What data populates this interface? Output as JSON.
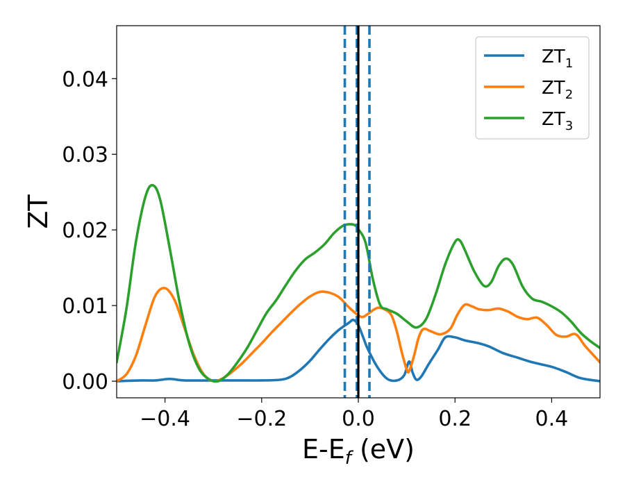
{
  "chart_data": {
    "type": "line",
    "title": "",
    "xlabel": {
      "base": "E-E",
      "sub": "f",
      "suffix": " (eV)"
    },
    "ylabel": "ZT",
    "xlim": [
      -0.5,
      0.5
    ],
    "ylim": [
      -0.0022,
      0.047
    ],
    "xticks": [
      -0.4,
      -0.2,
      0.0,
      0.2,
      0.4
    ],
    "xtick_labels": [
      "−0.4",
      "−0.2",
      "0.0",
      "0.2",
      "0.4"
    ],
    "yticks": [
      0.0,
      0.01,
      0.02,
      0.03,
      0.04
    ],
    "ytick_labels": [
      "0.00",
      "0.01",
      "0.02",
      "0.03",
      "0.04"
    ],
    "grid": false,
    "legend_position": "top-right",
    "series": [
      {
        "name": "ZT1",
        "label_base": "ZT",
        "label_sub": "1",
        "color": "#1f77b4",
        "points": [
          [
            -0.5,
            0.0
          ],
          [
            -0.45,
            0.0001
          ],
          [
            -0.42,
            0.0001
          ],
          [
            -0.39,
            0.0003
          ],
          [
            -0.36,
            0.0001
          ],
          [
            -0.3,
            0.0001
          ],
          [
            -0.25,
            0.0001
          ],
          [
            -0.2,
            0.0001
          ],
          [
            -0.16,
            0.0002
          ],
          [
            -0.14,
            0.0006
          ],
          [
            -0.12,
            0.0015
          ],
          [
            -0.1,
            0.0027
          ],
          [
            -0.08,
            0.0042
          ],
          [
            -0.06,
            0.0056
          ],
          [
            -0.04,
            0.0068
          ],
          [
            -0.02,
            0.0077
          ],
          [
            -0.01,
            0.0081
          ],
          [
            0.0,
            0.0074
          ],
          [
            0.01,
            0.0058
          ],
          [
            0.02,
            0.0042
          ],
          [
            0.04,
            0.0018
          ],
          [
            0.06,
            0.0003
          ],
          [
            0.08,
            0.0001
          ],
          [
            0.095,
            0.0008
          ],
          [
            0.105,
            0.0026
          ],
          [
            0.112,
            0.0012
          ],
          [
            0.12,
            0.0002
          ],
          [
            0.13,
            0.0006
          ],
          [
            0.145,
            0.0022
          ],
          [
            0.165,
            0.0042
          ],
          [
            0.18,
            0.0058
          ],
          [
            0.2,
            0.0058
          ],
          [
            0.22,
            0.0054
          ],
          [
            0.25,
            0.005
          ],
          [
            0.27,
            0.0046
          ],
          [
            0.3,
            0.0037
          ],
          [
            0.33,
            0.0031
          ],
          [
            0.36,
            0.0025
          ],
          [
            0.4,
            0.0019
          ],
          [
            0.43,
            0.0012
          ],
          [
            0.46,
            0.0004
          ],
          [
            0.5,
            0.0
          ]
        ]
      },
      {
        "name": "ZT2",
        "label_base": "ZT",
        "label_sub": "2",
        "color": "#ff7f0e",
        "points": [
          [
            -0.5,
            0.0
          ],
          [
            -0.48,
            0.0009
          ],
          [
            -0.46,
            0.0034
          ],
          [
            -0.44,
            0.0075
          ],
          [
            -0.42,
            0.0113
          ],
          [
            -0.4,
            0.0123
          ],
          [
            -0.38,
            0.0107
          ],
          [
            -0.36,
            0.0071
          ],
          [
            -0.34,
            0.0034
          ],
          [
            -0.32,
            0.0009
          ],
          [
            -0.3,
            0.0
          ],
          [
            -0.28,
            0.0004
          ],
          [
            -0.26,
            0.0013
          ],
          [
            -0.24,
            0.0024
          ],
          [
            -0.22,
            0.0037
          ],
          [
            -0.2,
            0.005
          ],
          [
            -0.18,
            0.0064
          ],
          [
            -0.16,
            0.0077
          ],
          [
            -0.14,
            0.009
          ],
          [
            -0.12,
            0.0102
          ],
          [
            -0.1,
            0.0112
          ],
          [
            -0.08,
            0.0118
          ],
          [
            -0.06,
            0.0117
          ],
          [
            -0.04,
            0.0111
          ],
          [
            -0.02,
            0.0098
          ],
          [
            0.0,
            0.0087
          ],
          [
            0.01,
            0.0085
          ],
          [
            0.02,
            0.0089
          ],
          [
            0.04,
            0.0097
          ],
          [
            0.06,
            0.0093
          ],
          [
            0.07,
            0.0085
          ],
          [
            0.08,
            0.0065
          ],
          [
            0.09,
            0.0038
          ],
          [
            0.1,
            0.0016
          ],
          [
            0.105,
            0.0013
          ],
          [
            0.115,
            0.0033
          ],
          [
            0.125,
            0.0058
          ],
          [
            0.135,
            0.0069
          ],
          [
            0.15,
            0.0066
          ],
          [
            0.17,
            0.0062
          ],
          [
            0.19,
            0.0069
          ],
          [
            0.205,
            0.0088
          ],
          [
            0.22,
            0.0101
          ],
          [
            0.235,
            0.0099
          ],
          [
            0.25,
            0.0095
          ],
          [
            0.27,
            0.0094
          ],
          [
            0.29,
            0.0096
          ],
          [
            0.31,
            0.0092
          ],
          [
            0.33,
            0.0085
          ],
          [
            0.35,
            0.0082
          ],
          [
            0.37,
            0.0084
          ],
          [
            0.39,
            0.0074
          ],
          [
            0.41,
            0.0061
          ],
          [
            0.43,
            0.0059
          ],
          [
            0.45,
            0.0062
          ],
          [
            0.47,
            0.0046
          ],
          [
            0.5,
            0.0025
          ]
        ]
      },
      {
        "name": "ZT3",
        "label_base": "ZT",
        "label_sub": "3",
        "color": "#2ca02c",
        "points": [
          [
            -0.5,
            0.0025
          ],
          [
            -0.48,
            0.0095
          ],
          [
            -0.46,
            0.0185
          ],
          [
            -0.44,
            0.0245
          ],
          [
            -0.425,
            0.0259
          ],
          [
            -0.41,
            0.024
          ],
          [
            -0.39,
            0.0175
          ],
          [
            -0.37,
            0.0105
          ],
          [
            -0.35,
            0.005
          ],
          [
            -0.33,
            0.0017
          ],
          [
            -0.31,
            0.0003
          ],
          [
            -0.29,
            0.0
          ],
          [
            -0.27,
            0.0009
          ],
          [
            -0.25,
            0.0025
          ],
          [
            -0.23,
            0.0044
          ],
          [
            -0.21,
            0.0067
          ],
          [
            -0.19,
            0.009
          ],
          [
            -0.17,
            0.0107
          ],
          [
            -0.15,
            0.0127
          ],
          [
            -0.13,
            0.0146
          ],
          [
            -0.11,
            0.0161
          ],
          [
            -0.09,
            0.017
          ],
          [
            -0.07,
            0.0181
          ],
          [
            -0.05,
            0.0196
          ],
          [
            -0.03,
            0.0206
          ],
          [
            -0.01,
            0.0207
          ],
          [
            0.0,
            0.0201
          ],
          [
            0.015,
            0.0183
          ],
          [
            0.03,
            0.0135
          ],
          [
            0.045,
            0.0101
          ],
          [
            0.06,
            0.0095
          ],
          [
            0.08,
            0.0089
          ],
          [
            0.1,
            0.0079
          ],
          [
            0.12,
            0.0071
          ],
          [
            0.14,
            0.0082
          ],
          [
            0.16,
            0.0115
          ],
          [
            0.18,
            0.0155
          ],
          [
            0.2,
            0.0184
          ],
          [
            0.21,
            0.0186
          ],
          [
            0.22,
            0.0174
          ],
          [
            0.24,
            0.0145
          ],
          [
            0.26,
            0.0126
          ],
          [
            0.275,
            0.0131
          ],
          [
            0.29,
            0.0152
          ],
          [
            0.305,
            0.0162
          ],
          [
            0.32,
            0.0154
          ],
          [
            0.34,
            0.0125
          ],
          [
            0.36,
            0.0109
          ],
          [
            0.38,
            0.0105
          ],
          [
            0.4,
            0.0099
          ],
          [
            0.42,
            0.0091
          ],
          [
            0.44,
            0.0079
          ],
          [
            0.46,
            0.0064
          ],
          [
            0.48,
            0.0053
          ],
          [
            0.5,
            0.0044
          ]
        ]
      }
    ],
    "vlines": [
      {
        "x": -0.028,
        "style": "dashed",
        "color": "#1f77b4"
      },
      {
        "x": -0.003,
        "style": "dashed",
        "color": "#1f77b4"
      },
      {
        "x": 0.023,
        "style": "dashed",
        "color": "#1f77b4"
      },
      {
        "x": 0.0,
        "style": "solid",
        "color": "#000000"
      }
    ]
  }
}
